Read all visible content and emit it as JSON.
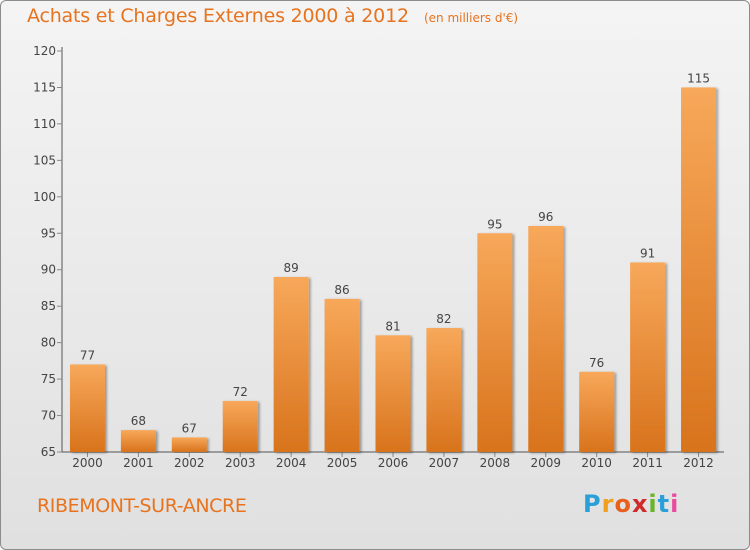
{
  "title": "Achats et Charges Externes 2000 à 2012",
  "subtitle": "(en milliers d'€)",
  "city": "RIBEMONT-SUR-ANCRE",
  "logo": {
    "text": "Proxiti",
    "letters": [
      "P",
      "r",
      "o",
      "x",
      "i",
      "t",
      "i"
    ]
  },
  "colors": {
    "accent": "#e8731e",
    "bar_light": "#f7a85a",
    "bar_dark": "#d8731c",
    "axis": "#555555",
    "grid_tick": "#888888"
  },
  "chart_data": {
    "type": "bar",
    "categories": [
      "2000",
      "2001",
      "2002",
      "2003",
      "2004",
      "2005",
      "2006",
      "2007",
      "2008",
      "2009",
      "2010",
      "2011",
      "2012"
    ],
    "values": [
      77,
      68,
      67,
      72,
      89,
      86,
      81,
      82,
      95,
      96,
      76,
      91,
      115
    ],
    "ylim": [
      65,
      120
    ],
    "yticks": [
      65,
      70,
      75,
      80,
      85,
      90,
      95,
      100,
      105,
      110,
      115,
      120
    ],
    "ytick_labels": [
      "65",
      "70",
      "75",
      "80",
      "85",
      "90",
      "95",
      "100",
      "105",
      "110",
      "115",
      "120"
    ],
    "grid": false,
    "data_labels": true
  }
}
